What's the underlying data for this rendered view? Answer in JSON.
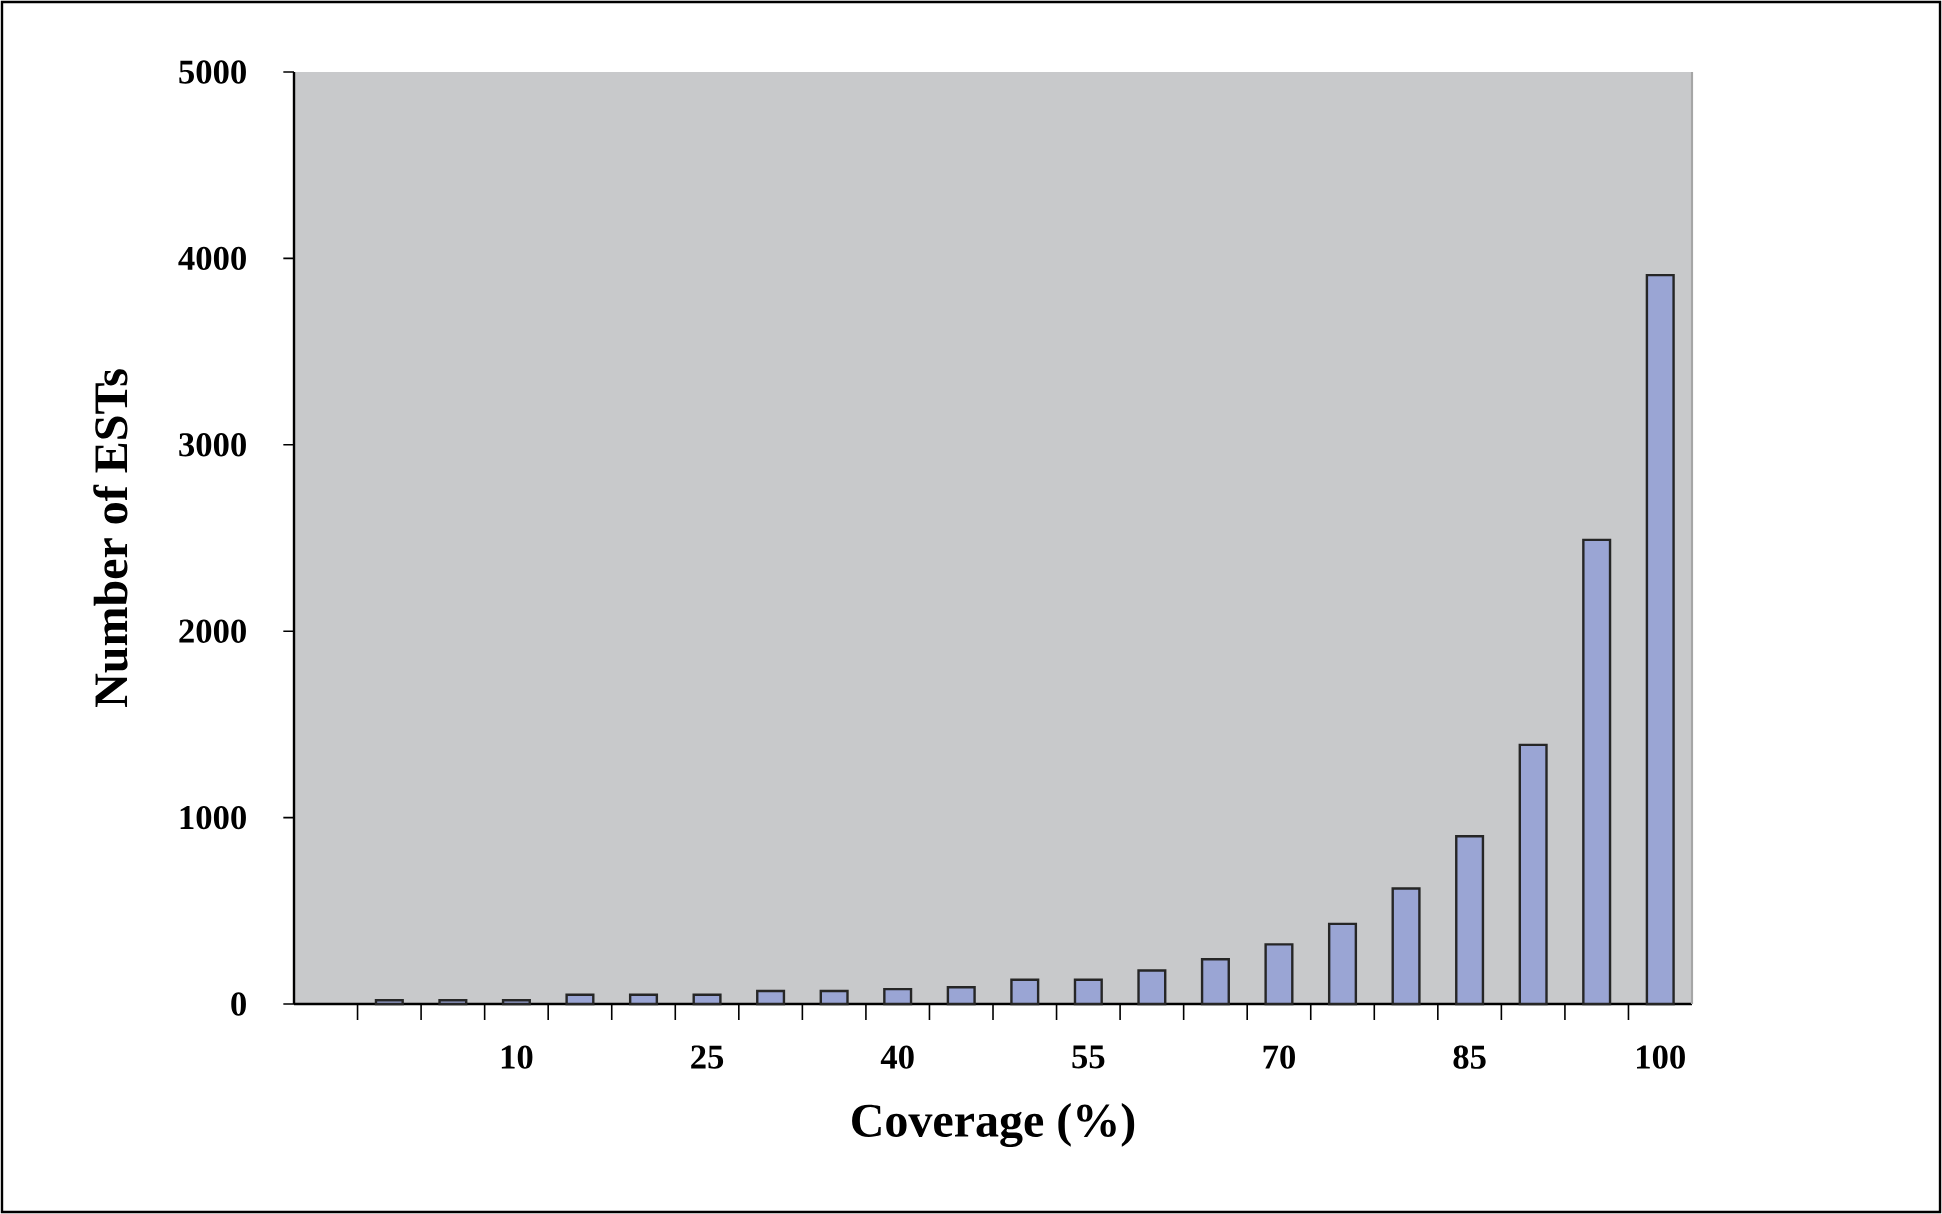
{
  "chart_data": {
    "type": "bar",
    "xlabel": "Coverage (%)",
    "ylabel": "Number of ESTs",
    "categories": [
      null,
      null,
      "10",
      null,
      null,
      "25",
      null,
      null,
      "40",
      null,
      null,
      "55",
      null,
      null,
      "70",
      null,
      null,
      "85",
      null,
      null,
      "100"
    ],
    "values": [
      20,
      20,
      20,
      50,
      50,
      50,
      70,
      70,
      80,
      90,
      130,
      130,
      180,
      240,
      320,
      430,
      620,
      900,
      1390,
      2490,
      3910
    ],
    "color": "#9aa5d4",
    "ylim": [
      0,
      5000
    ],
    "yticks": [
      0,
      1000,
      2000,
      3000,
      4000,
      5000
    ]
  }
}
